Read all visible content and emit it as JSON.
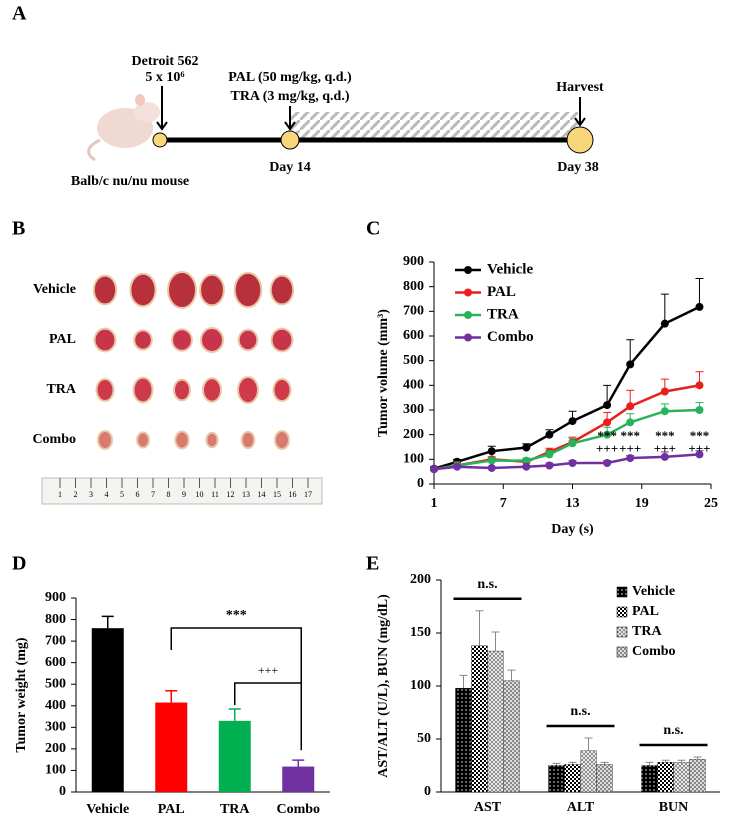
{
  "panel_labels": [
    "A",
    "B",
    "C",
    "D",
    "E"
  ],
  "timeline": {
    "cells": "Detroit 562",
    "cell_count": "5 x 10⁶",
    "treatment_1": "PAL (50 mg/kg, q.d.)",
    "treatment_2": "TRA (3 mg/kg, q.d.)",
    "harvest": "Harvest",
    "start_day": "Day 14",
    "end_day": "Day 38",
    "mouse": "Balb/c nu/nu mouse"
  },
  "photo": {
    "groups": [
      "Vehicle",
      "PAL",
      "TRA",
      "Combo"
    ],
    "ruler_labels": [
      "1",
      "2",
      "3",
      "4",
      "5",
      "6",
      "7",
      "8",
      "9",
      "10",
      "11",
      "12",
      "13",
      "14",
      "15",
      "16",
      "17"
    ]
  },
  "chart_data": [
    {
      "type": "line",
      "y_label": "Tumor volume (mm³)",
      "x_label": "Day (s)",
      "x": [
        1,
        3,
        6,
        9,
        11,
        13,
        16,
        18,
        21,
        24
      ],
      "xlim": [
        1,
        25
      ],
      "xticks": [
        1,
        7,
        13,
        19,
        25
      ],
      "ylim": [
        0,
        900
      ],
      "yticks": [
        0,
        100,
        200,
        300,
        400,
        500,
        600,
        700,
        800,
        900
      ],
      "legend": "upper left",
      "series": [
        {
          "name": "Vehicle",
          "color": "#000000",
          "values": [
            62,
            90,
            133,
            148,
            200,
            255,
            320,
            485,
            650,
            718
          ],
          "errors": [
            8,
            10,
            20,
            15,
            20,
            40,
            80,
            100,
            120,
            115
          ]
        },
        {
          "name": "PAL",
          "color": "#e8201c",
          "values": [
            60,
            75,
            100,
            90,
            130,
            170,
            250,
            315,
            375,
            400
          ],
          "errors": [
            5,
            15,
            10,
            10,
            15,
            20,
            40,
            65,
            50,
            55
          ]
        },
        {
          "name": "TRA",
          "color": "#27b35a",
          "values": [
            60,
            75,
            95,
            95,
            120,
            165,
            200,
            250,
            295,
            300
          ],
          "errors": [
            5,
            5,
            10,
            10,
            15,
            20,
            30,
            35,
            30,
            30
          ]
        },
        {
          "name": "Combo",
          "color": "#7030a0",
          "values": [
            60,
            70,
            65,
            70,
            75,
            85,
            85,
            105,
            110,
            120
          ],
          "errors": [
            5,
            5,
            5,
            5,
            10,
            10,
            10,
            10,
            20,
            15
          ]
        }
      ],
      "annotations": [
        {
          "x": 16,
          "texts": [
            "***",
            "+++"
          ]
        },
        {
          "x": 18,
          "texts": [
            "***",
            "+++"
          ]
        },
        {
          "x": 21,
          "texts": [
            "***",
            "+++"
          ]
        },
        {
          "x": 24,
          "texts": [
            "***",
            "+++"
          ]
        }
      ]
    },
    {
      "type": "bar",
      "y_label": "Tumor weight (mg)",
      "categories": [
        "Vehicle",
        "PAL",
        "TRA",
        "Combo"
      ],
      "values": [
        760,
        415,
        330,
        118
      ],
      "errors": [
        55,
        55,
        55,
        30
      ],
      "colors": [
        "#000000",
        "#ff0000",
        "#00b050",
        "#7030a0"
      ],
      "ylim": [
        0,
        900
      ],
      "yticks": [
        0,
        100,
        200,
        300,
        400,
        500,
        600,
        700,
        800,
        900
      ],
      "comparisons": [
        {
          "from": "PAL",
          "to": "Combo",
          "text": "***"
        },
        {
          "from": "TRA",
          "to": "Combo",
          "text": "+++"
        }
      ]
    },
    {
      "type": "grouped-bar",
      "y_label": "AST/ALT (U/L), BUN (mg/dL)",
      "categories": [
        "AST",
        "ALT",
        "BUN"
      ],
      "series": [
        {
          "name": "Vehicle",
          "color": "#000000",
          "values": [
            98,
            25,
            25
          ],
          "errors": [
            12,
            2,
            3
          ]
        },
        {
          "name": "PAL",
          "color": "#000000",
          "values": [
            138,
            26,
            28
          ],
          "errors": [
            33,
            2,
            2
          ]
        },
        {
          "name": "TRA",
          "color": "#000000",
          "values": [
            133,
            39,
            28
          ],
          "errors": [
            18,
            12,
            2
          ]
        },
        {
          "name": "Combo",
          "color": "#000000",
          "values": [
            105,
            26,
            31
          ],
          "errors": [
            10,
            2,
            2
          ]
        }
      ],
      "ylim": [
        0,
        200
      ],
      "yticks": [
        0,
        50,
        100,
        150,
        200
      ],
      "legend": "upper right",
      "significance": [
        "n.s.",
        "n.s.",
        "n.s."
      ]
    }
  ]
}
